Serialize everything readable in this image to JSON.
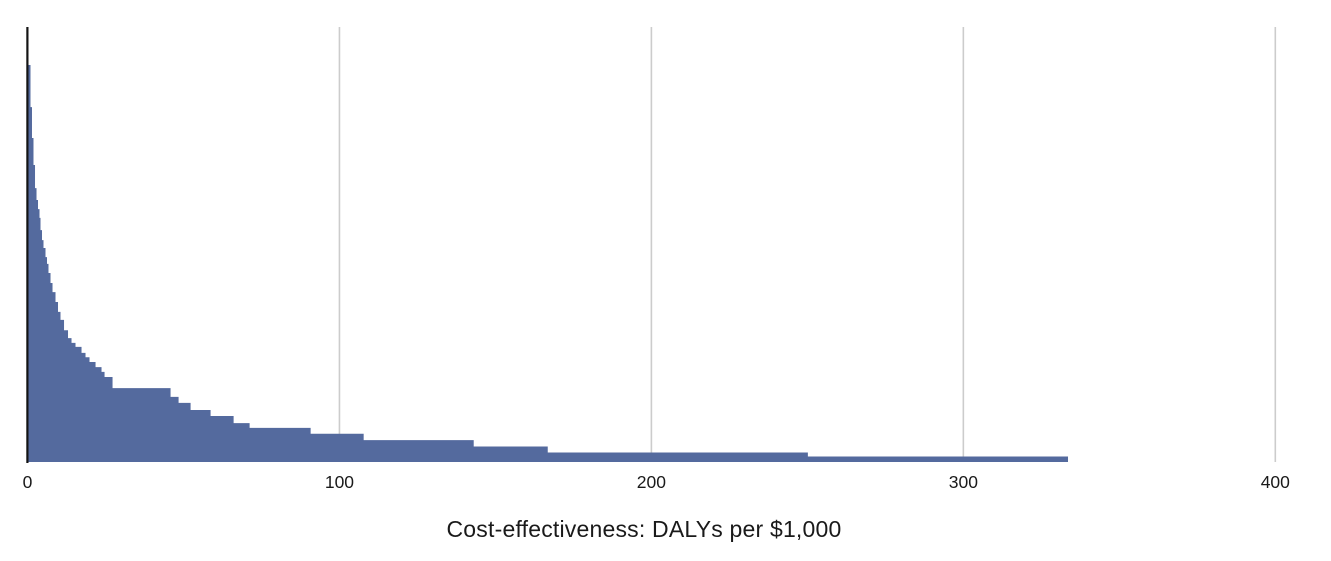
{
  "figure": {
    "background": "#ffffff",
    "colors": {
      "bar": "#546a9e",
      "axis_line": "#141414",
      "gridline": "#cccccc",
      "label_text": "#1a1a1a"
    }
  },
  "chart_data": {
    "type": "bar",
    "title": "",
    "xlabel": "Cost-effectiveness: DALYs per $1,000",
    "ylabel": "",
    "xlim": [
      0,
      415
    ],
    "x_ticks": [
      0,
      100,
      200,
      300,
      400
    ],
    "x_tick_labels": [
      "0",
      "100",
      "200",
      "300",
      "400"
    ],
    "y_axis_labeled": false,
    "grid": "vertical-only",
    "legend": "none",
    "description": "Right-skewed distribution of intervention cost-effectiveness: many interventions near 0 DALYs per $1,000, with a long thin tail extending to about 333. Bar heights are relative (no y-axis scale shown); h = height as fraction of the tallest bar at x=0.",
    "bars": [
      {
        "x0": 0.0,
        "x1": 0.96,
        "h": 1.0
      },
      {
        "x0": 0.96,
        "x1": 1.44,
        "h": 0.894
      },
      {
        "x0": 1.44,
        "x1": 1.92,
        "h": 0.816
      },
      {
        "x0": 1.92,
        "x1": 2.41,
        "h": 0.748
      },
      {
        "x0": 2.41,
        "x1": 2.89,
        "h": 0.69
      },
      {
        "x0": 2.89,
        "x1": 3.37,
        "h": 0.66
      },
      {
        "x0": 3.37,
        "x1": 3.85,
        "h": 0.637
      },
      {
        "x0": 3.85,
        "x1": 4.17,
        "h": 0.615
      },
      {
        "x0": 4.17,
        "x1": 4.65,
        "h": 0.584
      },
      {
        "x0": 4.65,
        "x1": 5.13,
        "h": 0.559
      },
      {
        "x0": 5.13,
        "x1": 5.77,
        "h": 0.539
      },
      {
        "x0": 5.77,
        "x1": 6.25,
        "h": 0.516
      },
      {
        "x0": 6.25,
        "x1": 6.73,
        "h": 0.499
      },
      {
        "x0": 6.73,
        "x1": 7.38,
        "h": 0.476
      },
      {
        "x0": 7.38,
        "x1": 8.02,
        "h": 0.451
      },
      {
        "x0": 8.02,
        "x1": 8.98,
        "h": 0.428
      },
      {
        "x0": 8.98,
        "x1": 9.78,
        "h": 0.403
      },
      {
        "x0": 9.78,
        "x1": 10.58,
        "h": 0.378
      },
      {
        "x0": 10.58,
        "x1": 11.71,
        "h": 0.358
      },
      {
        "x0": 11.71,
        "x1": 12.99,
        "h": 0.332
      },
      {
        "x0": 12.99,
        "x1": 14.11,
        "h": 0.312
      },
      {
        "x0": 14.11,
        "x1": 15.39,
        "h": 0.3
      },
      {
        "x0": 15.39,
        "x1": 17.32,
        "h": 0.29
      },
      {
        "x0": 17.32,
        "x1": 18.6,
        "h": 0.275
      },
      {
        "x0": 18.6,
        "x1": 19.88,
        "h": 0.264
      },
      {
        "x0": 19.88,
        "x1": 21.81,
        "h": 0.252
      },
      {
        "x0": 21.81,
        "x1": 23.73,
        "h": 0.239
      },
      {
        "x0": 23.73,
        "x1": 24.7,
        "h": 0.227
      },
      {
        "x0": 24.7,
        "x1": 27.26,
        "h": 0.214
      },
      {
        "x0": 27.26,
        "x1": 45.86,
        "h": 0.186
      },
      {
        "x0": 45.86,
        "x1": 48.43,
        "h": 0.164
      },
      {
        "x0": 48.43,
        "x1": 52.28,
        "h": 0.149
      },
      {
        "x0": 52.28,
        "x1": 58.69,
        "h": 0.131
      },
      {
        "x0": 58.69,
        "x1": 66.07,
        "h": 0.116
      },
      {
        "x0": 66.07,
        "x1": 71.2,
        "h": 0.098
      },
      {
        "x0": 71.2,
        "x1": 90.76,
        "h": 0.086
      },
      {
        "x0": 90.76,
        "x1": 107.76,
        "h": 0.071
      },
      {
        "x0": 107.76,
        "x1": 143.04,
        "h": 0.055
      },
      {
        "x0": 143.04,
        "x1": 166.77,
        "h": 0.039
      },
      {
        "x0": 166.77,
        "x1": 250.16,
        "h": 0.024
      },
      {
        "x0": 250.16,
        "x1": 333.55,
        "h": 0.014
      }
    ]
  }
}
